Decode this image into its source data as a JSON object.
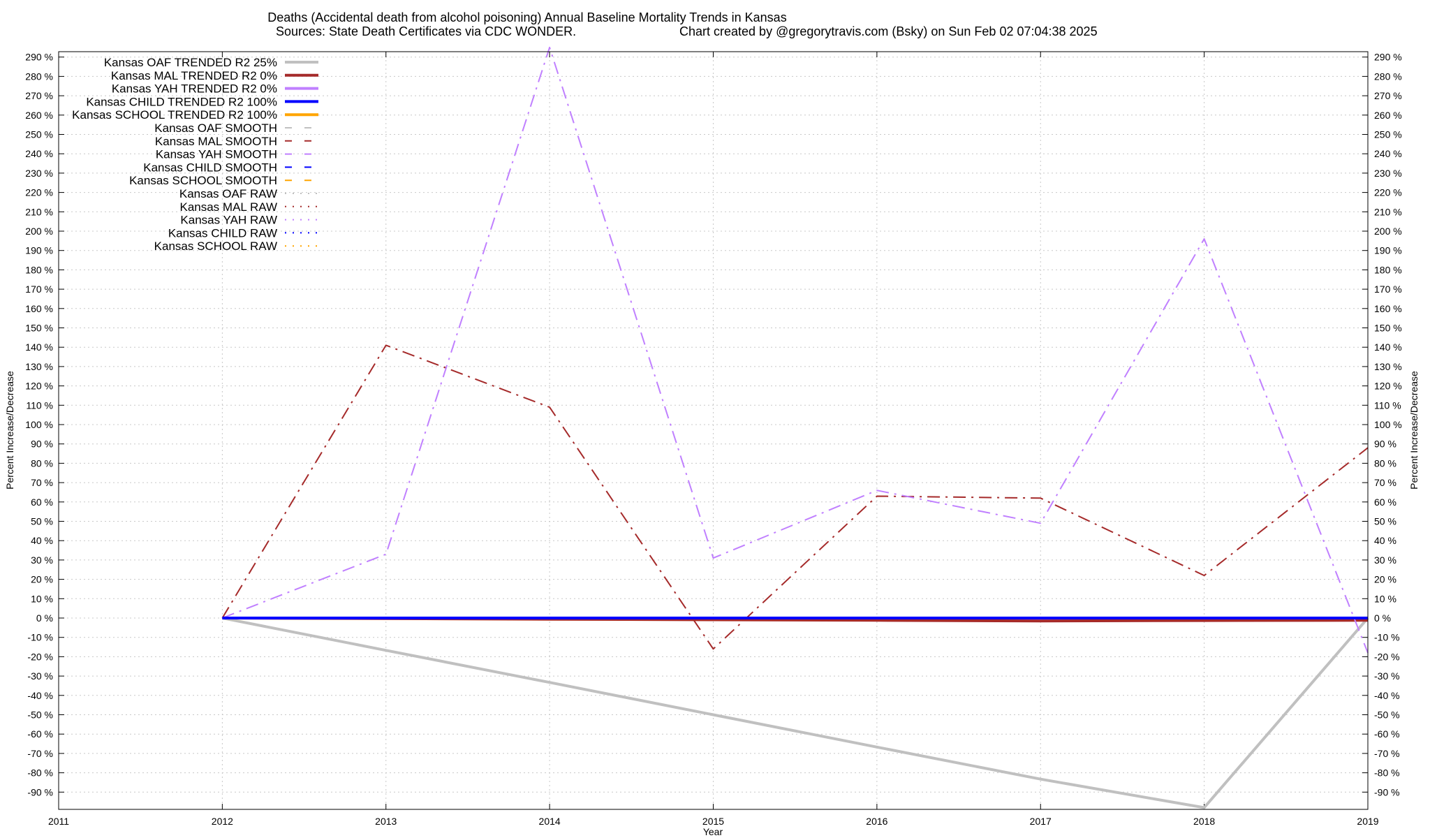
{
  "chart_data": {
    "type": "line",
    "title": "Deaths (Accidental death from alcohol poisoning)  Annual Baseline Mortality Trends in Kansas",
    "subtitle_left": "Sources: State Death Certificates via CDC WONDER.",
    "subtitle_right": "Chart created by @gregorytravis.com (Bsky) on Sun Feb 02 07:04:38 2025",
    "xlabel": "Year",
    "ylabel": "Percent Increase/Decrease",
    "ylabel_right": "Percent Increase/Decrease",
    "xlim": [
      2011,
      2019
    ],
    "ylim": [
      -100,
      295
    ],
    "x_ticks": [
      "2011",
      "2012",
      "2013",
      "2014",
      "2015",
      "2016",
      "2017",
      "2018",
      "2019"
    ],
    "y_ticks": [
      "290 %",
      "280 %",
      "270 %",
      "260 %",
      "250 %",
      "240 %",
      "230 %",
      "220 %",
      "210 %",
      "200 %",
      "190 %",
      "180 %",
      "170 %",
      "160 %",
      "150 %",
      "140 %",
      "130 %",
      "120 %",
      "110 %",
      "100 %",
      "90 %",
      "80 %",
      "70 %",
      "60 %",
      "50 %",
      "40 %",
      "30 %",
      "20 %",
      "10 %",
      "0 %",
      "-10 %",
      "-20 %",
      "-30 %",
      "-40 %",
      "-50 %",
      "-60 %",
      "-70 %",
      "-80 %",
      "-90 %"
    ],
    "grid": true,
    "legend_position": "top-left",
    "series": [
      {
        "name": "Kansas OAF TRENDED R2  25%",
        "color": "#c0c0c0",
        "style": "solid",
        "width": 4,
        "x": [
          2012,
          2013,
          2014,
          2015,
          2016,
          2017,
          2018,
          2019
        ],
        "y": [
          0,
          -16.7,
          -33.3,
          -50,
          -66.7,
          -83.3,
          -98,
          0
        ]
      },
      {
        "name": "Kansas MAL TRENDED R2   0%",
        "color": "#a52a2a",
        "style": "solid",
        "width": 4,
        "x": [
          2012,
          2013,
          2014,
          2015,
          2016,
          2017,
          2018,
          2019
        ],
        "y": [
          0,
          -0.3,
          -0.6,
          -0.9,
          -1.2,
          -1.5,
          -1.3,
          -1.2
        ]
      },
      {
        "name": "Kansas YAH TRENDED R2   0%",
        "color": "#c080ff",
        "style": "solid",
        "width": 4,
        "x": [
          2012,
          2013,
          2014,
          2015,
          2016,
          2017,
          2018,
          2019
        ],
        "y": [
          0,
          -0.2,
          -0.4,
          -0.6,
          -0.8,
          -1,
          -0.8,
          -0.6
        ]
      },
      {
        "name": "Kansas CHILD TRENDED R2 100%",
        "color": "#0000ff",
        "style": "solid",
        "width": 4,
        "x": [
          2012,
          2019
        ],
        "y": [
          0,
          0
        ]
      },
      {
        "name": "Kansas SCHOOL TRENDED R2 100%",
        "color": "#ffa500",
        "style": "solid",
        "width": 4,
        "x": [],
        "y": []
      },
      {
        "name": "Kansas OAF SMOOTH",
        "color": "#c0c0c0",
        "style": "dashed",
        "width": 2,
        "x": [],
        "y": []
      },
      {
        "name": "Kansas MAL SMOOTH",
        "color": "#a52a2a",
        "style": "dashed",
        "width": 2,
        "x": [
          2012,
          2013,
          2014,
          2015,
          2016,
          2017,
          2018,
          2019
        ],
        "y": [
          0,
          141,
          109,
          -16,
          63,
          62,
          22,
          88
        ]
      },
      {
        "name": "Kansas YAH SMOOTH",
        "color": "#c080ff",
        "style": "dashed",
        "width": 2,
        "x": [
          2012,
          2013,
          2014,
          2015,
          2016,
          2017,
          2018,
          2019
        ],
        "y": [
          0,
          33,
          295,
          31,
          66,
          49,
          196,
          -18
        ]
      },
      {
        "name": "Kansas CHILD SMOOTH",
        "color": "#0000ff",
        "style": "dashed",
        "width": 2,
        "x": [],
        "y": []
      },
      {
        "name": "Kansas SCHOOL SMOOTH",
        "color": "#ffa500",
        "style": "dashed",
        "width": 2,
        "x": [],
        "y": []
      },
      {
        "name": "Kansas OAF RAW",
        "color": "#c0c0c0",
        "style": "dotted",
        "width": 2,
        "x": [],
        "y": []
      },
      {
        "name": "Kansas MAL RAW",
        "color": "#a52a2a",
        "style": "dotted",
        "width": 2,
        "x": [],
        "y": []
      },
      {
        "name": "Kansas YAH RAW",
        "color": "#c080ff",
        "style": "dotted",
        "width": 2,
        "x": [],
        "y": []
      },
      {
        "name": "Kansas CHILD RAW",
        "color": "#0000ff",
        "style": "dotted",
        "width": 2,
        "x": [],
        "y": []
      },
      {
        "name": "Kansas SCHOOL RAW",
        "color": "#ffa500",
        "style": "dotted",
        "width": 2,
        "x": [],
        "y": []
      }
    ]
  }
}
